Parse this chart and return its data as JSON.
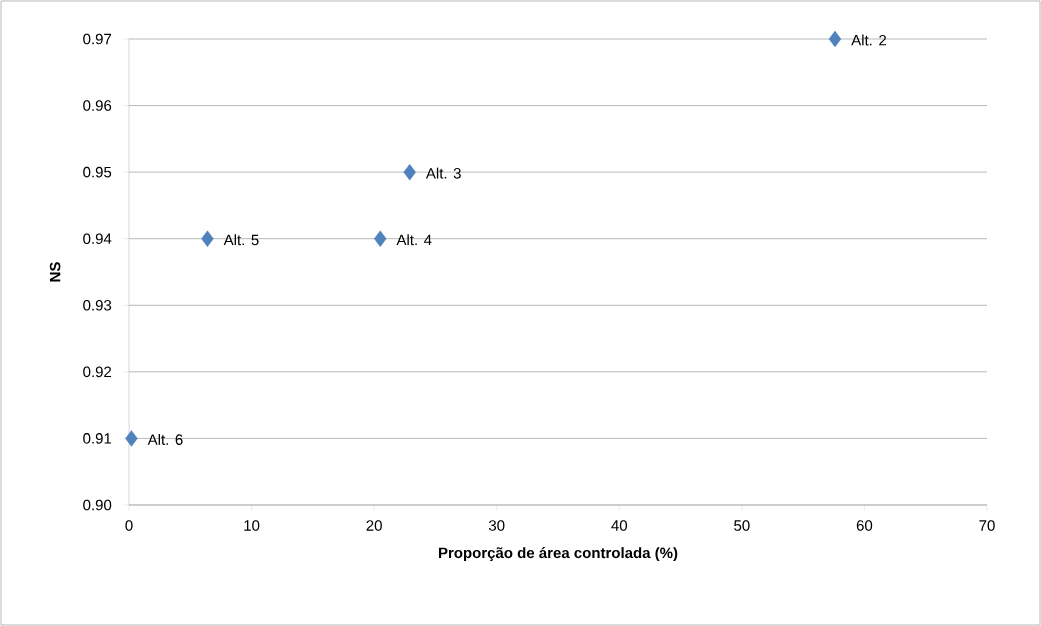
{
  "chart_data": {
    "type": "scatter",
    "xlabel": "Proporção de área controlada (%)",
    "ylabel": "NS",
    "x": [
      57.6,
      22.9,
      20.5,
      6.4,
      0.2
    ],
    "series": [
      {
        "color": "#4f81bd",
        "values": [
          0.97,
          0.95,
          0.94,
          0.94,
          0.91
        ]
      }
    ],
    "annotations": [
      {
        "text": "Alt. 2",
        "x": 57.6,
        "y": 0.97
      },
      {
        "text": "Alt. 3",
        "x": 22.9,
        "y": 0.95
      },
      {
        "text": "Alt. 4",
        "x": 20.5,
        "y": 0.94
      },
      {
        "text": "Alt. 5",
        "x": 6.4,
        "y": 0.94
      },
      {
        "text": "Alt. 6",
        "x": 0.2,
        "y": 0.91
      }
    ],
    "xlim": [
      0,
      70
    ],
    "ylim": [
      0.9,
      0.97
    ],
    "xticks": [
      0,
      10,
      20,
      30,
      40,
      50,
      60,
      70
    ],
    "yticks": [
      {
        "value": 0.9,
        "label": "0.90"
      },
      0.91,
      0.92,
      0.93,
      0.94,
      0.95,
      0.96,
      0.97
    ],
    "grid": "y",
    "marker": "diamond"
  }
}
